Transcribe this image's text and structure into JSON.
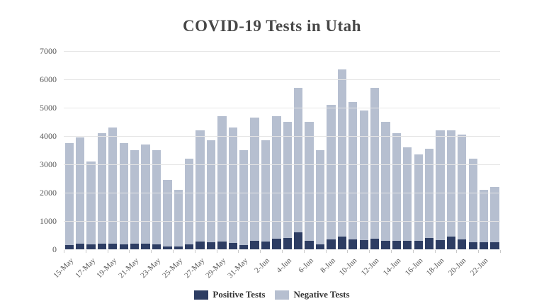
{
  "title": "COVID-19 Tests in Utah",
  "chart_data": {
    "type": "bar",
    "stacked": true,
    "title": "COVID-19 Tests in Utah",
    "xlabel": "",
    "ylabel": "",
    "ylim": [
      0,
      7000
    ],
    "y_ticks": [
      0,
      1000,
      2000,
      3000,
      4000,
      5000,
      6000,
      7000
    ],
    "grid": true,
    "legend_position": "bottom",
    "x_label_every": 2,
    "categories": [
      "15-May",
      "16-May",
      "17-May",
      "18-May",
      "19-May",
      "20-May",
      "21-May",
      "22-May",
      "23-May",
      "24-May",
      "25-May",
      "26-May",
      "27-May",
      "28-May",
      "29-May",
      "30-May",
      "31-May",
      "1-Jun",
      "2-Jun",
      "3-Jun",
      "4-Jun",
      "5-Jun",
      "6-Jun",
      "7-Jun",
      "8-Jun",
      "9-Jun",
      "10-Jun",
      "11-Jun",
      "12-Jun",
      "13-Jun",
      "14-Jun",
      "15-Jun",
      "16-Jun",
      "17-Jun",
      "18-Jun",
      "19-Jun",
      "20-Jun",
      "21-Jun",
      "22-Jun",
      "23-Jun"
    ],
    "shown_x_tick_labels": [
      "15-May",
      "17-May",
      "19-May",
      "21-May",
      "23-May",
      "25-May",
      "27-May",
      "29-May",
      "31-May",
      "2-Jun",
      "4-Jun",
      "6-Jun",
      "8-Jun",
      "10-Jun",
      "12-Jun",
      "14-Jun",
      "16-Jun",
      "18-Jun",
      "20-Jun",
      "22-Jun"
    ],
    "series": [
      {
        "name": "Positive Tests",
        "color": "#2d3d63",
        "values": [
          150,
          200,
          175,
          200,
          200,
          175,
          200,
          200,
          175,
          100,
          100,
          175,
          275,
          250,
          275,
          225,
          150,
          300,
          275,
          375,
          400,
          600,
          300,
          175,
          350,
          450,
          350,
          325,
          375,
          300,
          300,
          300,
          300,
          400,
          325,
          450,
          350,
          250,
          250,
          250
        ]
      },
      {
        "name": "Negative Tests",
        "color": "#b6bfd0",
        "values": [
          3600,
          3750,
          2925,
          3900,
          4100,
          3575,
          3300,
          3500,
          3325,
          2350,
          2000,
          3025,
          3925,
          3600,
          4425,
          4075,
          3350,
          4350,
          3575,
          4325,
          4100,
          5100,
          4200,
          3325,
          4750,
          5900,
          4850,
          4575,
          5325,
          4200,
          3800,
          3300,
          3050,
          3150,
          3875,
          3750,
          3700,
          2950,
          1850,
          1950
        ]
      }
    ],
    "colors": {
      "positive": "#2d3d63",
      "negative": "#b6bfd0",
      "gridline": "#e5e5e5",
      "axis_text": "#595959",
      "title_text": "#474747"
    }
  }
}
